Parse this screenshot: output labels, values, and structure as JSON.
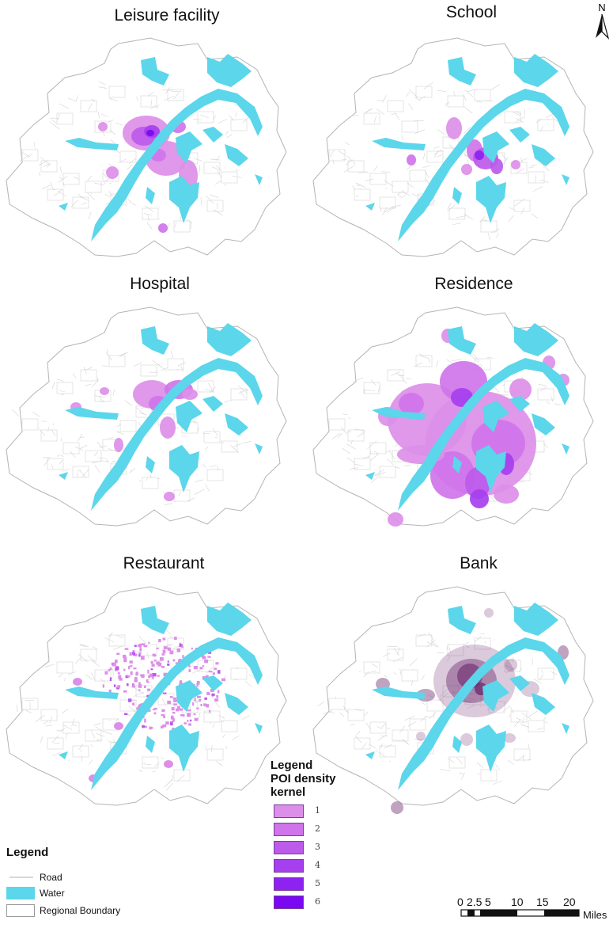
{
  "panels": [
    {
      "title": "Leisure facility",
      "pattern": "leisure"
    },
    {
      "title": "School",
      "pattern": "school"
    },
    {
      "title": "Hospital",
      "pattern": "hospital"
    },
    {
      "title": "Residence",
      "pattern": "residence"
    },
    {
      "title": "Restaurant",
      "pattern": "restaurant"
    },
    {
      "title": "Bank",
      "pattern": "bank"
    }
  ],
  "base_legend": {
    "title": "Legend",
    "items": [
      {
        "label": "Road",
        "symbol": "line",
        "color": "#b0b0b0"
      },
      {
        "label": "Water",
        "symbol": "fill",
        "color": "#5bd6ea"
      },
      {
        "label": "Regional Boundary",
        "symbol": "outline",
        "color": "#9a9a9a"
      }
    ]
  },
  "density_legend": {
    "title_line1": "Legend",
    "title_line2": "POI density",
    "title_line3": "kernel",
    "classes": [
      {
        "label": "1",
        "color": "#dc8fe8"
      },
      {
        "label": "2",
        "color": "#cf74ea"
      },
      {
        "label": "3",
        "color": "#bc5aea"
      },
      {
        "label": "4",
        "color": "#a63fee"
      },
      {
        "label": "5",
        "color": "#8e22f0"
      },
      {
        "label": "6",
        "color": "#7a08f2"
      }
    ]
  },
  "north_arrow": {
    "label": "N"
  },
  "scale_bar": {
    "ticks": [
      "0",
      "2.5",
      "5",
      "10",
      "15",
      "20"
    ],
    "unit": "Miles"
  },
  "colors": {
    "water": "#5bd6ea",
    "boundary": "#b4b4b4",
    "road": "#d2d2d2",
    "bank_density": "#6e2a6e"
  }
}
